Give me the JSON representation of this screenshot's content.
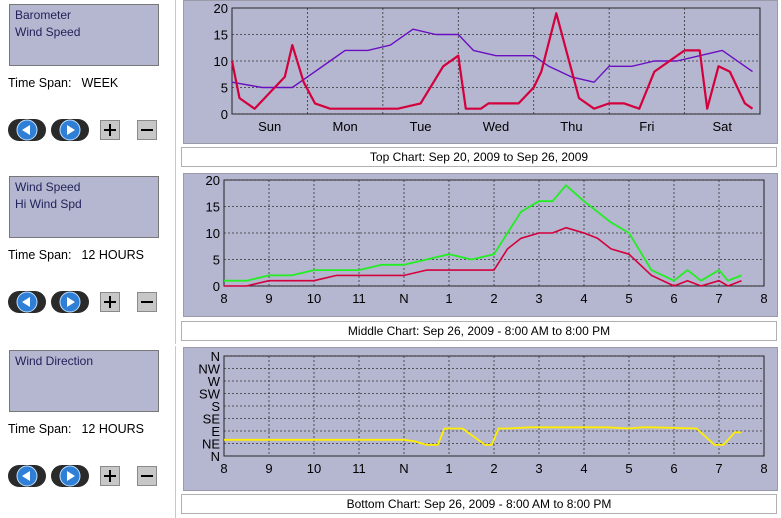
{
  "colors": {
    "panel": "#b5b6d0",
    "grid": "#3a3a3a",
    "barometer": "#6a0fc0",
    "wind": "#d4003c",
    "hiwind": "#22ee22",
    "direction": "#ffee00"
  },
  "panels": [
    {
      "legend": [
        "Barometer",
        "Wind Speed"
      ],
      "timespan_label": "Time Span:",
      "timespan_value": "WEEK",
      "caption": "Top Chart:  Sep 20, 2009  to  Sep 26, 2009"
    },
    {
      "legend": [
        "Wind Speed",
        "Hi Wind Spd"
      ],
      "timespan_label": "Time Span:",
      "timespan_value": "12 HOURS",
      "caption": "Middle Chart:  Sep 26, 2009 - 8:00 AM  to  8:00 PM"
    },
    {
      "legend": [
        "Wind Direction"
      ],
      "timespan_label": "Time Span:",
      "timespan_value": "12 HOURS",
      "caption": "Bottom Chart:  Sep 26, 2009 - 8:00 AM  to  8:00 PM"
    }
  ],
  "controls": {
    "back_icon": "left-arrow-icon",
    "forward_icon": "right-arrow-icon",
    "zoom_in": "+",
    "zoom_out": "−"
  },
  "chart_data": [
    {
      "type": "line",
      "x_categories": [
        "Sun",
        "Mon",
        "Tue",
        "Wed",
        "Thu",
        "Fri",
        "Sat"
      ],
      "ylim": [
        0,
        20
      ],
      "yticks": [
        "0",
        "5",
        "10",
        "15",
        "20"
      ],
      "series": [
        {
          "name": "Barometer",
          "x": [
            0,
            0.4,
            0.8,
            1.0,
            1.3,
            1.5,
            1.8,
            2.1,
            2.4,
            2.7,
            3.0,
            3.2,
            3.5,
            3.8,
            4.0,
            4.2,
            4.5,
            4.8,
            5.0,
            5.3,
            5.6,
            5.9,
            6.2,
            6.5,
            6.9
          ],
          "y": [
            6,
            5,
            5,
            7,
            10,
            12,
            12,
            13,
            16,
            15,
            15,
            12,
            11,
            11,
            11,
            9,
            7,
            6,
            9,
            9,
            10,
            10,
            11,
            12,
            8
          ]
        },
        {
          "name": "Wind Speed",
          "x": [
            0,
            0.1,
            0.3,
            0.5,
            0.7,
            0.8,
            0.95,
            1.1,
            1.3,
            1.5,
            1.7,
            2.0,
            2.2,
            2.5,
            2.8,
            3.0,
            3.1,
            3.2,
            3.3,
            3.4,
            3.6,
            3.8,
            4.0,
            4.1,
            4.3,
            4.6,
            4.8,
            5.0,
            5.1,
            5.2,
            5.4,
            5.6,
            5.8,
            6.0,
            6.2,
            6.3,
            6.45,
            6.6,
            6.8,
            6.9
          ],
          "y": [
            10,
            3,
            1,
            4,
            7,
            13,
            6,
            2,
            1,
            1,
            1,
            1,
            1,
            2,
            9,
            11,
            1,
            1,
            1,
            2,
            2,
            2,
            5,
            8,
            19,
            3,
            1,
            2,
            2,
            2,
            1,
            8,
            10,
            12,
            12,
            1,
            9,
            8,
            2,
            1
          ]
        }
      ]
    },
    {
      "type": "line",
      "x_categories": [
        "8",
        "9",
        "10",
        "11",
        "N",
        "1",
        "2",
        "3",
        "4",
        "5",
        "6",
        "7",
        "8"
      ],
      "ylim": [
        0,
        20
      ],
      "yticks": [
        "0",
        "5",
        "10",
        "15",
        "20"
      ],
      "series": [
        {
          "name": "Hi Wind Spd",
          "x": [
            0,
            0.5,
            1,
            1.5,
            2,
            2.5,
            3,
            3.5,
            4,
            4.5,
            5,
            5.5,
            6,
            6.3,
            6.6,
            7,
            7.3,
            7.6,
            8,
            8.3,
            8.6,
            9,
            9.5,
            10,
            10.3,
            10.6,
            11,
            11.2,
            11.5
          ],
          "y": [
            1,
            1,
            2,
            2,
            3,
            3,
            3,
            4,
            4,
            5,
            6,
            5,
            6,
            10,
            14,
            16,
            16,
            19,
            16,
            14,
            12,
            10,
            3,
            1,
            3,
            1,
            3,
            1,
            2
          ]
        },
        {
          "name": "Wind Speed",
          "x": [
            0,
            0.5,
            1,
            1.5,
            2,
            2.5,
            3,
            3.5,
            4,
            4.5,
            5,
            5.5,
            6,
            6.3,
            6.6,
            7,
            7.3,
            7.6,
            8,
            8.3,
            8.6,
            9,
            9.5,
            10,
            10.3,
            10.6,
            11,
            11.2,
            11.5
          ],
          "y": [
            0,
            0,
            1,
            1,
            1,
            2,
            2,
            2,
            2,
            3,
            3,
            3,
            3,
            7,
            9,
            10,
            10,
            11,
            10,
            9,
            7,
            6,
            2,
            0,
            1,
            0,
            1,
            0,
            1
          ]
        }
      ]
    },
    {
      "type": "line",
      "x_categories": [
        "8",
        "9",
        "10",
        "11",
        "N",
        "1",
        "2",
        "3",
        "4",
        "5",
        "6",
        "7",
        "8"
      ],
      "y_categories": [
        "N",
        "NW",
        "W",
        "SW",
        "S",
        "SE",
        "E",
        "NE",
        "N"
      ],
      "series": [
        {
          "name": "Wind Direction",
          "x": [
            0,
            0.5,
            1,
            1.6,
            2,
            2.5,
            3,
            3.5,
            3.8,
            4.0,
            4.2,
            4.5,
            4.75,
            4.9,
            5.1,
            5.3,
            5.8,
            5.95,
            6.1,
            6.3,
            6.8,
            7.3,
            7.8,
            8.5,
            9,
            9.3,
            9.5,
            10.5,
            10.9,
            11.1,
            11.35,
            11.5
          ],
          "y": [
            1.3,
            1.3,
            1.3,
            1.3,
            1.3,
            1.3,
            1.3,
            1.3,
            1.3,
            1.3,
            1.2,
            0.9,
            0.9,
            2.2,
            2.2,
            2.2,
            0.9,
            0.9,
            2.2,
            2.2,
            2.3,
            2.3,
            2.3,
            2.3,
            2.2,
            2.3,
            2.3,
            2.2,
            0.9,
            0.9,
            1.9,
            1.9
          ]
        }
      ]
    }
  ]
}
